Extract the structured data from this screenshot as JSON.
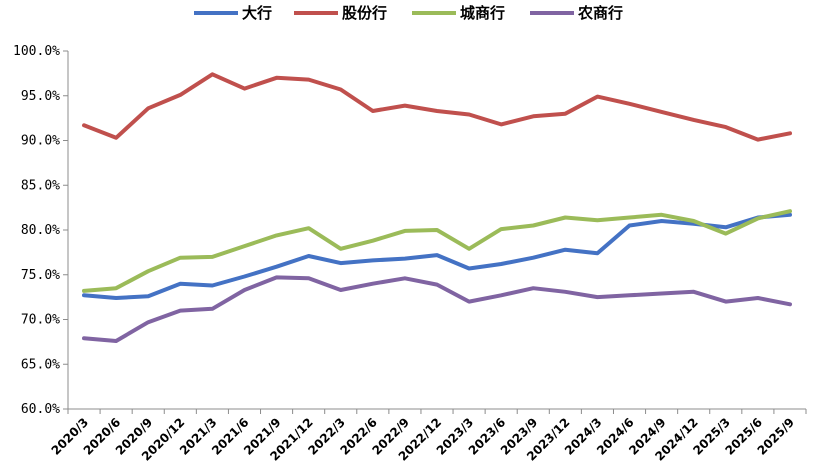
{
  "chart_data": {
    "type": "line",
    "title": "",
    "xlabel": "",
    "ylabel": "",
    "ylim": [
      60,
      100
    ],
    "y_ticks": [
      "60.0%",
      "65.0%",
      "70.0%",
      "75.0%",
      "80.0%",
      "85.0%",
      "90.0%",
      "95.0%",
      "100.0%"
    ],
    "legend_position": "top",
    "grid": false,
    "categories": [
      "2020/3",
      "2020/6",
      "2020/9",
      "2020/12",
      "2021/3",
      "2021/6",
      "2021/9",
      "2021/12",
      "2022/3",
      "2022/6",
      "2022/9",
      "2022/12",
      "2023/3",
      "2023/6",
      "2023/9",
      "2023/12",
      "2024/3",
      "2024/6",
      "2024/9",
      "2024/12",
      "2025/3",
      "2025/6",
      "2025/9"
    ],
    "series": [
      {
        "name": "大行",
        "color": "#4472C4",
        "values": [
          72.7,
          72.4,
          72.6,
          74.0,
          73.8,
          74.8,
          75.9,
          77.1,
          76.3,
          76.6,
          76.8,
          77.2,
          75.7,
          76.2,
          76.9,
          77.8,
          77.4,
          80.5,
          81.0,
          80.7,
          80.3,
          81.4,
          81.7
        ]
      },
      {
        "name": "股份行",
        "color": "#C0504D",
        "values": [
          91.7,
          90.3,
          93.6,
          95.1,
          97.4,
          95.8,
          97.0,
          96.8,
          95.7,
          93.3,
          93.9,
          93.3,
          92.9,
          91.8,
          92.7,
          93.0,
          94.9,
          94.1,
          93.2,
          92.3,
          91.5,
          90.1,
          90.8
        ]
      },
      {
        "name": "城商行",
        "color": "#9BBB59",
        "values": [
          73.2,
          73.5,
          75.4,
          76.9,
          77.0,
          78.2,
          79.4,
          80.2,
          77.9,
          78.8,
          79.9,
          80.0,
          77.9,
          80.1,
          80.5,
          81.4,
          81.1,
          81.4,
          81.7,
          81.0,
          79.6,
          81.3,
          82.1
        ]
      },
      {
        "name": "农商行",
        "color": "#8064A2",
        "values": [
          67.9,
          67.6,
          69.7,
          71.0,
          71.2,
          73.3,
          74.7,
          74.6,
          73.3,
          74.0,
          74.6,
          73.9,
          72.0,
          72.7,
          73.5,
          73.1,
          72.5,
          72.7,
          72.9,
          73.1,
          72.0,
          72.4,
          71.7
        ]
      }
    ]
  }
}
